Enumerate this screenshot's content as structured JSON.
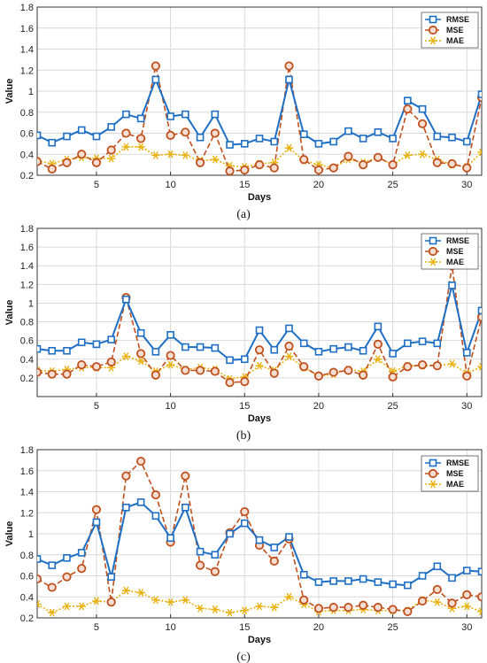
{
  "colors": {
    "RMSE": "#1f6fc4",
    "MSE": "#c0501e",
    "MAE": "#e8b10e",
    "grid": "#d9d9d9"
  },
  "chart_data": [
    {
      "type": "line",
      "caption": "(a)",
      "xlabel": "Days",
      "ylabel": "Value",
      "xlim": [
        1,
        31
      ],
      "ylim": [
        0.2,
        1.8
      ],
      "xticks": [
        "5",
        "10",
        "15",
        "20",
        "25",
        "30"
      ],
      "yticks": [
        "0.2",
        "0.4",
        "0.6",
        "0.8",
        "1",
        "1.2",
        "1.4",
        "1.6",
        "1.8"
      ],
      "grid": true,
      "legend": "top-right",
      "x": [
        1,
        2,
        3,
        4,
        5,
        6,
        7,
        8,
        9,
        10,
        11,
        12,
        13,
        14,
        15,
        16,
        17,
        18,
        19,
        20,
        21,
        22,
        23,
        24,
        25,
        26,
        27,
        28,
        29,
        30,
        31
      ],
      "series": [
        {
          "name": "RMSE",
          "values": [
            0.58,
            0.51,
            0.57,
            0.63,
            0.57,
            0.66,
            0.78,
            0.74,
            1.11,
            0.76,
            0.78,
            0.56,
            0.78,
            0.49,
            0.5,
            0.55,
            0.52,
            1.11,
            0.59,
            0.5,
            0.52,
            0.62,
            0.55,
            0.61,
            0.55,
            0.91,
            0.83,
            0.57,
            0.56,
            0.52,
            0.97
          ]
        },
        {
          "name": "MSE",
          "values": [
            0.33,
            0.26,
            0.32,
            0.4,
            0.32,
            0.44,
            0.6,
            0.55,
            1.24,
            0.58,
            0.61,
            0.32,
            0.6,
            0.24,
            0.25,
            0.3,
            0.27,
            1.24,
            0.35,
            0.25,
            0.27,
            0.38,
            0.3,
            0.37,
            0.3,
            0.83,
            0.69,
            0.32,
            0.31,
            0.27,
            0.94
          ]
        },
        {
          "name": "MAE",
          "values": [
            0.34,
            0.31,
            0.35,
            0.37,
            0.36,
            0.36,
            0.47,
            0.47,
            0.39,
            0.4,
            0.39,
            0.34,
            0.35,
            0.29,
            0.28,
            0.31,
            0.32,
            0.46,
            0.34,
            0.3,
            0.27,
            0.35,
            0.32,
            0.37,
            0.3,
            0.39,
            0.4,
            0.35,
            0.3,
            0.28,
            0.42
          ]
        }
      ]
    },
    {
      "type": "line",
      "caption": "(b)",
      "xlabel": "Days",
      "ylabel": "Value",
      "xlim": [
        1,
        31
      ],
      "ylim": [
        0.0,
        1.8
      ],
      "xticks": [
        "5",
        "10",
        "15",
        "20",
        "25",
        "30"
      ],
      "yticks": [
        "0.2",
        "0.4",
        "0.6",
        "0.8",
        "1",
        "1.2",
        "1.4",
        "1.6",
        "1.8"
      ],
      "grid": true,
      "legend": "top-right",
      "x": [
        1,
        2,
        3,
        4,
        5,
        6,
        7,
        8,
        9,
        10,
        11,
        12,
        13,
        14,
        15,
        16,
        17,
        18,
        19,
        20,
        21,
        22,
        23,
        24,
        25,
        26,
        27,
        28,
        29,
        30,
        31
      ],
      "series": [
        {
          "name": "RMSE",
          "values": [
            0.51,
            0.49,
            0.49,
            0.58,
            0.56,
            0.61,
            1.04,
            0.68,
            0.48,
            0.66,
            0.53,
            0.53,
            0.52,
            0.39,
            0.4,
            0.71,
            0.5,
            0.73,
            0.57,
            0.48,
            0.51,
            0.53,
            0.49,
            0.75,
            0.46,
            0.57,
            0.59,
            0.57,
            1.19,
            0.47,
            0.92
          ]
        },
        {
          "name": "MSE",
          "values": [
            0.26,
            0.24,
            0.24,
            0.34,
            0.32,
            0.37,
            1.06,
            0.46,
            0.23,
            0.44,
            0.28,
            0.28,
            0.27,
            0.15,
            0.16,
            0.5,
            0.25,
            0.54,
            0.32,
            0.22,
            0.26,
            0.28,
            0.23,
            0.56,
            0.21,
            0.32,
            0.34,
            0.33,
            1.4,
            0.22,
            0.85
          ]
        },
        {
          "name": "MAE",
          "values": [
            0.28,
            0.27,
            0.29,
            0.31,
            0.31,
            0.31,
            0.43,
            0.38,
            0.27,
            0.34,
            0.29,
            0.31,
            0.29,
            0.19,
            0.21,
            0.33,
            0.28,
            0.43,
            0.31,
            0.22,
            0.24,
            0.29,
            0.27,
            0.4,
            0.27,
            0.33,
            0.33,
            0.33,
            0.35,
            0.25,
            0.32
          ]
        }
      ]
    },
    {
      "type": "line",
      "caption": "(c)",
      "xlabel": "Days",
      "ylabel": "Value",
      "xlim": [
        1,
        31
      ],
      "ylim": [
        0.2,
        1.8
      ],
      "xticks": [
        "5",
        "10",
        "15",
        "20",
        "25",
        "30"
      ],
      "yticks": [
        "0.2",
        "0.4",
        "0.6",
        "0.8",
        "1",
        "1.2",
        "1.4",
        "1.6",
        "1.8"
      ],
      "grid": true,
      "legend": "top-right",
      "x": [
        1,
        2,
        3,
        4,
        5,
        6,
        7,
        8,
        9,
        10,
        11,
        12,
        13,
        14,
        15,
        16,
        17,
        18,
        19,
        20,
        21,
        22,
        23,
        24,
        25,
        26,
        27,
        28,
        29,
        30,
        31
      ],
      "series": [
        {
          "name": "RMSE",
          "values": [
            0.76,
            0.7,
            0.77,
            0.82,
            1.11,
            0.59,
            1.25,
            1.3,
            1.17,
            0.96,
            1.25,
            0.83,
            0.8,
            1.0,
            1.1,
            0.94,
            0.87,
            0.97,
            0.61,
            0.54,
            0.55,
            0.55,
            0.57,
            0.54,
            0.52,
            0.51,
            0.6,
            0.69,
            0.58,
            0.65,
            0.64
          ]
        },
        {
          "name": "MSE",
          "values": [
            0.57,
            0.49,
            0.59,
            0.67,
            1.23,
            0.35,
            1.55,
            1.69,
            1.37,
            0.92,
            1.55,
            0.7,
            0.64,
            1.01,
            1.21,
            0.89,
            0.74,
            0.95,
            0.37,
            0.29,
            0.3,
            0.3,
            0.32,
            0.3,
            0.28,
            0.26,
            0.36,
            0.47,
            0.34,
            0.42,
            0.4
          ]
        },
        {
          "name": "MAE",
          "values": [
            0.33,
            0.25,
            0.31,
            0.31,
            0.36,
            0.35,
            0.46,
            0.44,
            0.37,
            0.35,
            0.37,
            0.29,
            0.28,
            0.25,
            0.27,
            0.31,
            0.3,
            0.4,
            0.33,
            0.26,
            0.27,
            0.27,
            0.28,
            0.27,
            0.27,
            0.27,
            0.37,
            0.35,
            0.29,
            0.31,
            0.26
          ]
        }
      ]
    }
  ]
}
